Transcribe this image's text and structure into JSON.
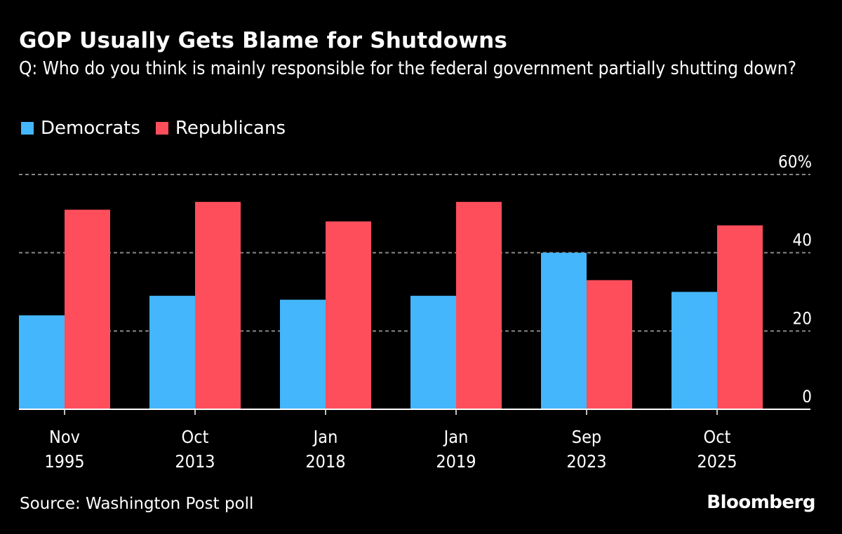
{
  "title": "GOP Usually Gets Blame for Shutdowns",
  "subtitle": "Q: Who do you think is mainly responsible for the federal government partially shutting down?",
  "source": "Source: Washington Post poll",
  "brand": "Bloomberg",
  "colors": {
    "democrats": "#44b6fb",
    "republicans": "#ff4e5b",
    "grid": "#888888",
    "axis": "#ffffff"
  },
  "chart_data": {
    "type": "bar",
    "title": "GOP Usually Gets Blame for Shutdowns",
    "subtitle": "Q: Who do you think is mainly responsible for the federal government partially shutting down?",
    "xlabel": "",
    "ylabel": "",
    "categories": [
      "Nov 1995",
      "Oct 2013",
      "Jan 2018",
      "Jan 2019",
      "Sep 2023",
      "Oct 2025"
    ],
    "category_lines": [
      [
        "Nov",
        "1995"
      ],
      [
        "Oct",
        "2013"
      ],
      [
        "Jan",
        "2018"
      ],
      [
        "Jan",
        "2019"
      ],
      [
        "Sep",
        "2023"
      ],
      [
        "Oct",
        "2025"
      ]
    ],
    "series": [
      {
        "name": "Democrats",
        "values": [
          24,
          29,
          28,
          29,
          40,
          30
        ]
      },
      {
        "name": "Republicans",
        "values": [
          51,
          53,
          48,
          53,
          33,
          47
        ]
      }
    ],
    "ylim": [
      0,
      60
    ],
    "yticks": [
      0,
      20,
      40,
      60
    ],
    "ytick_labels": [
      "0",
      "20",
      "40",
      "60%"
    ],
    "grid": true,
    "legend": "top-left",
    "y_axis_side": "right"
  }
}
